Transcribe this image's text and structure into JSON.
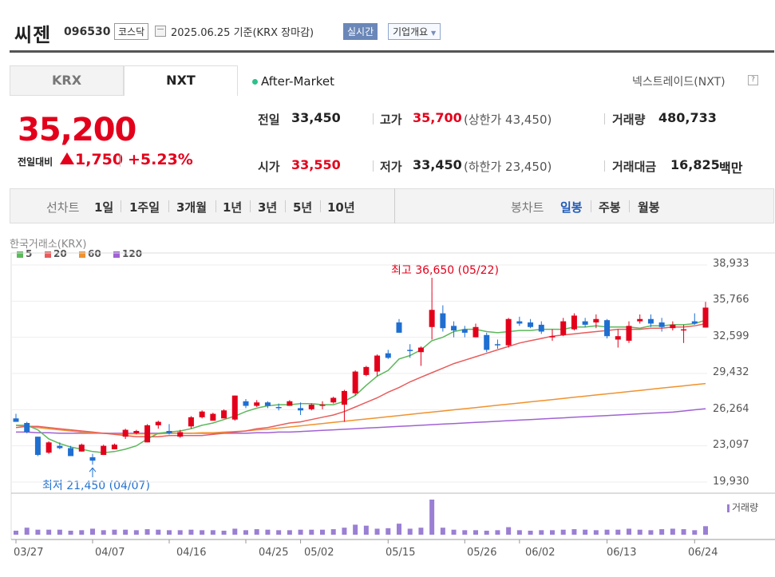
{
  "header": {
    "name": "씨젠",
    "code": "096530",
    "market": "코스닥",
    "date": "2025.06.25 기준(KRX 장마감)",
    "realtime_label": "실시간",
    "company_label": "기업개요"
  },
  "tabs": [
    "KRX",
    "NXT"
  ],
  "after_market": "After-Market",
  "nxt_label": "넥스트레이드(NXT)",
  "price": {
    "current": "35,200",
    "diff_label": "전일대비",
    "diff": "1,750",
    "pct": "+5.23%"
  },
  "stats": {
    "prev_label": "전일",
    "prev": "33,450",
    "high_label": "고가",
    "high": "35,700",
    "high_sub": "(상한가 43,450)",
    "volume_label": "거래량",
    "volume": "480,733",
    "open_label": "시가",
    "open": "33,550",
    "low_label": "저가",
    "low": "33,450",
    "low_sub": "(하한가 23,450)",
    "amount_label": "거래대금",
    "amount": "16,825",
    "amount_unit": "백만"
  },
  "toolbar": {
    "line_label": "선차트",
    "line_periods": [
      "1일",
      "1주일",
      "3개월",
      "1년",
      "3년",
      "5년",
      "10년"
    ],
    "candle_label": "봉차트",
    "candle_periods": [
      "일봉",
      "주봉",
      "월봉"
    ],
    "selected_candle": "일봉"
  },
  "colors": {
    "up": "#e3001b",
    "down": "#1f6fd1",
    "ma5": "#5cb85c",
    "ma20": "#e85c5c",
    "ma60": "#f0922e",
    "ma120": "#a062d4",
    "volume": "#9b7fd4"
  },
  "chart_data": {
    "type": "candlestick",
    "source": "한국거래소(KRX)",
    "ylim": [
      19930,
      38933
    ],
    "yticks": [
      "38,933",
      "35,766",
      "32,599",
      "29,432",
      "26,264",
      "23,097",
      "19,930"
    ],
    "xticks": [
      "03/27",
      "04/07",
      "04/16",
      "04/25",
      "05/02",
      "05/15",
      "05/26",
      "06/02",
      "06/13",
      "06/24"
    ],
    "legend": [
      {
        "name": "5",
        "color": "#5cb85c"
      },
      {
        "name": "20",
        "color": "#e85c5c"
      },
      {
        "name": "60",
        "color": "#f0922e"
      },
      {
        "name": "120",
        "color": "#a062d4"
      }
    ],
    "volume_label": "거래량",
    "high_annotation": "최고 36,650 (05/22)",
    "low_annotation": "최저 21,450 (04/07)",
    "candles": [
      [
        25500,
        25900,
        25200,
        25200
      ],
      [
        25100,
        25200,
        24200,
        24300
      ],
      [
        23900,
        23900,
        22200,
        22300
      ],
      [
        22500,
        23500,
        22400,
        23400
      ],
      [
        23100,
        23400,
        22800,
        22900
      ],
      [
        22900,
        23100,
        22200,
        22200
      ],
      [
        22600,
        23300,
        22600,
        23200
      ],
      [
        22100,
        22400,
        21450,
        21800
      ],
      [
        22300,
        23200,
        22300,
        23100
      ],
      [
        22800,
        23300,
        22800,
        23200
      ],
      [
        23900,
        24600,
        23700,
        24500
      ],
      [
        24200,
        24500,
        24100,
        24400
      ],
      [
        23400,
        25000,
        23400,
        24900
      ],
      [
        24900,
        25300,
        24600,
        25200
      ],
      [
        24400,
        25000,
        24100,
        24200
      ],
      [
        23900,
        24500,
        23800,
        24300
      ],
      [
        24800,
        25700,
        24600,
        25600
      ],
      [
        25600,
        26200,
        25500,
        26100
      ],
      [
        25300,
        26000,
        25300,
        25900
      ],
      [
        25500,
        26300,
        25500,
        26200
      ],
      [
        25400,
        27500,
        25300,
        27500
      ],
      [
        27000,
        27200,
        26400,
        26600
      ],
      [
        26600,
        27100,
        26500,
        26900
      ],
      [
        26900,
        27000,
        26400,
        26600
      ],
      [
        26500,
        26800,
        26200,
        26400
      ],
      [
        26600,
        27100,
        26600,
        27000
      ],
      [
        26400,
        26900,
        25800,
        26200
      ],
      [
        26300,
        26800,
        26200,
        26700
      ],
      [
        26700,
        27000,
        26300,
        26700
      ],
      [
        26900,
        27400,
        26800,
        27300
      ],
      [
        26700,
        28000,
        25200,
        27900
      ],
      [
        27700,
        29700,
        27500,
        29600
      ],
      [
        29300,
        30100,
        29200,
        30000
      ],
      [
        29600,
        31100,
        29200,
        31000
      ],
      [
        31200,
        31500,
        30700,
        30800
      ],
      [
        33900,
        34200,
        33000,
        33000
      ],
      [
        31500,
        32000,
        30800,
        31400
      ],
      [
        31300,
        31800,
        30100,
        31700
      ],
      [
        33500,
        36650,
        32400,
        35000
      ],
      [
        34700,
        35400,
        33100,
        33400
      ],
      [
        33600,
        34000,
        32600,
        33200
      ],
      [
        33300,
        33600,
        32600,
        33000
      ],
      [
        32600,
        33800,
        32600,
        33500
      ],
      [
        32800,
        33000,
        31300,
        31500
      ],
      [
        32000,
        32400,
        31600,
        31900
      ],
      [
        31900,
        34300,
        31700,
        34200
      ],
      [
        34000,
        34400,
        33600,
        33800
      ],
      [
        33900,
        34200,
        33400,
        33500
      ],
      [
        33700,
        34000,
        32900,
        33100
      ],
      [
        32600,
        33300,
        32300,
        32700
      ],
      [
        32800,
        34300,
        32700,
        34000
      ],
      [
        33300,
        34700,
        33200,
        34500
      ],
      [
        34000,
        34300,
        33500,
        33700
      ],
      [
        33900,
        34600,
        33400,
        34200
      ],
      [
        34100,
        34200,
        32500,
        32700
      ],
      [
        32400,
        33300,
        31700,
        32700
      ],
      [
        32300,
        34000,
        32100,
        33600
      ],
      [
        34000,
        34600,
        33800,
        34200
      ],
      [
        34200,
        34600,
        33500,
        33800
      ],
      [
        33900,
        34300,
        33100,
        33500
      ],
      [
        33400,
        34000,
        33200,
        33700
      ],
      [
        33300,
        33700,
        32100,
        33300
      ],
      [
        34000,
        34700,
        33700,
        33800
      ],
      [
        33450,
        35700,
        33450,
        35200
      ]
    ],
    "ma": {
      "5": [
        24900,
        24900,
        24500,
        23700,
        23300,
        23000,
        22800,
        22600,
        22500,
        22600,
        22800,
        23100,
        23700,
        24200,
        24300,
        24400,
        24600,
        24900,
        25100,
        25400,
        25700,
        26100,
        26400,
        26600,
        26700,
        26700,
        26800,
        26800,
        26700,
        26700,
        27000,
        27500,
        28400,
        29200,
        29700,
        30700,
        31000,
        31500,
        32300,
        32600,
        33100,
        33300,
        33300,
        33100,
        33000,
        33100,
        33200,
        33200,
        33300,
        33300,
        33300,
        33500,
        33500,
        33600,
        33500,
        33500,
        33500,
        33400,
        33600,
        33600,
        33700,
        33700,
        33800,
        34100
      ],
      "20": [
        24700,
        24800,
        24800,
        24700,
        24600,
        24500,
        24400,
        24300,
        24200,
        24100,
        24000,
        23900,
        23900,
        23900,
        24000,
        24000,
        24000,
        24000,
        24100,
        24200,
        24300,
        24400,
        24600,
        24700,
        24900,
        25100,
        25200,
        25400,
        25600,
        25800,
        26100,
        26500,
        26900,
        27300,
        27800,
        28200,
        28700,
        29100,
        29500,
        29900,
        30300,
        30600,
        30900,
        31200,
        31500,
        31800,
        32100,
        32300,
        32500,
        32700,
        32800,
        32900,
        33000,
        33100,
        33200,
        33300,
        33300,
        33300,
        33400,
        33400,
        33500,
        33500,
        33600,
        33800
      ],
      "60": [
        24900,
        24800,
        24700,
        24600,
        24500,
        24400,
        24300,
        24250,
        24200,
        24150,
        24150,
        24150,
        24150,
        24150,
        24200,
        24200,
        24200,
        24250,
        24250,
        24300,
        24350,
        24400,
        24500,
        24550,
        24650,
        24750,
        24850,
        24950,
        25050,
        25150,
        25250,
        25350,
        25450,
        25550,
        25650,
        25750,
        25850,
        25950,
        26050,
        26150,
        26250,
        26350,
        26450,
        26550,
        26650,
        26750,
        26850,
        26950,
        27050,
        27150,
        27250,
        27350,
        27450,
        27550,
        27650,
        27750,
        27850,
        27950,
        28050,
        28150,
        28250,
        28350,
        28450,
        28550
      ],
      "120": [
        24300,
        24300,
        24250,
        24250,
        24200,
        24200,
        24200,
        24200,
        24200,
        24200,
        24200,
        24200,
        24200,
        24200,
        24200,
        24200,
        24200,
        24200,
        24200,
        24200,
        24200,
        24200,
        24250,
        24250,
        24300,
        24300,
        24350,
        24400,
        24450,
        24500,
        24550,
        24600,
        24650,
        24700,
        24750,
        24800,
        24850,
        24900,
        24950,
        25000,
        25050,
        25100,
        25150,
        25200,
        25250,
        25300,
        25350,
        25400,
        25450,
        25500,
        25550,
        25600,
        25650,
        25700,
        25750,
        25800,
        25850,
        25900,
        25950,
        26000,
        26050,
        26150,
        26250,
        26350
      ]
    },
    "volume": [
      8,
      14,
      10,
      10,
      10,
      8,
      9,
      12,
      9,
      10,
      10,
      9,
      11,
      10,
      9,
      9,
      10,
      9,
      9,
      8,
      12,
      9,
      11,
      10,
      9,
      9,
      10,
      10,
      10,
      11,
      14,
      20,
      18,
      12,
      13,
      22,
      12,
      14,
      70,
      14,
      10,
      9,
      9,
      8,
      9,
      15,
      9,
      8,
      9,
      9,
      10,
      11,
      10,
      9,
      10,
      10,
      12,
      10,
      9,
      11,
      12,
      11,
      9,
      17
    ]
  }
}
